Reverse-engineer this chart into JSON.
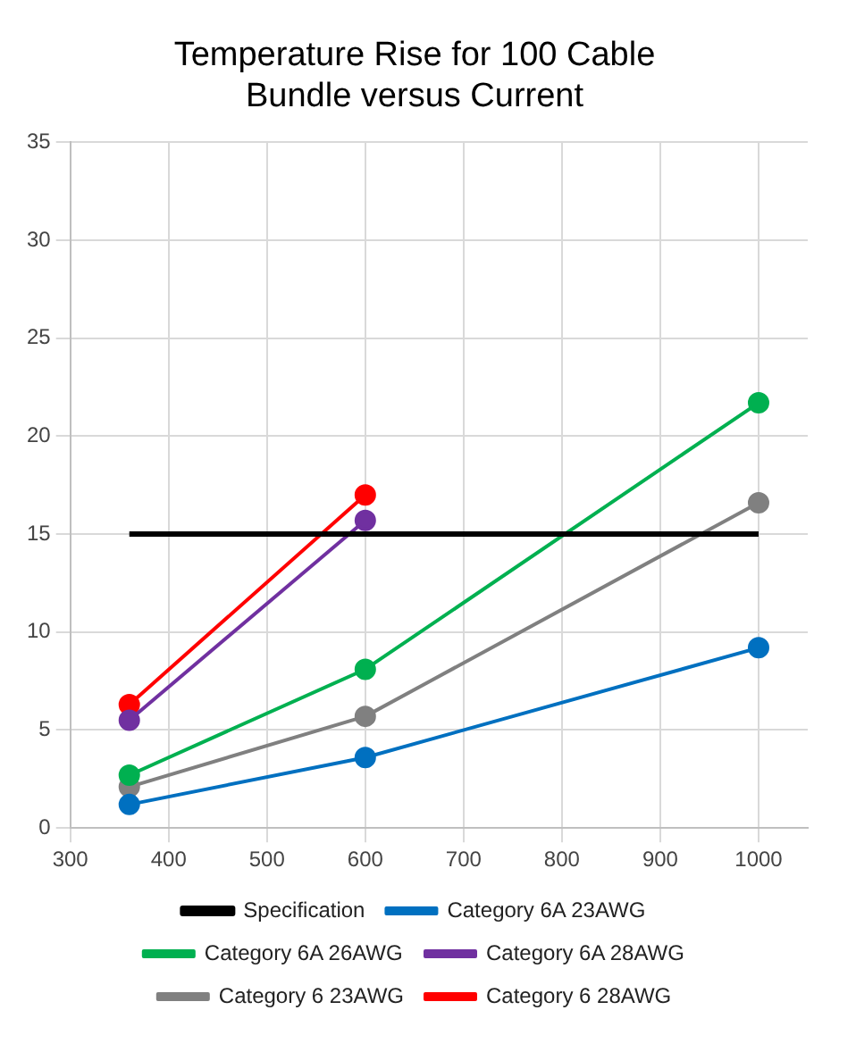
{
  "chart_data": {
    "type": "line",
    "title": "Temperature Rise for 100 Cable Bundle versus Current",
    "xlim": [
      300,
      1050
    ],
    "xticks": [
      300,
      400,
      500,
      600,
      700,
      800,
      900,
      1000
    ],
    "ylim": [
      0,
      35
    ],
    "yticks": [
      0,
      5,
      10,
      15,
      20,
      25,
      30,
      35
    ],
    "grid": true,
    "legend": "bottom",
    "marker": "circle",
    "series": [
      {
        "name": "Specification",
        "color": "#000000",
        "x": [
          360,
          1000
        ],
        "values": [
          15,
          15
        ],
        "marker": "none"
      },
      {
        "name": "Category 6A 23AWG",
        "color": "#0070c0",
        "x": [
          360,
          600,
          1000
        ],
        "values": [
          1.2,
          3.6,
          9.2
        ]
      },
      {
        "name": "Category 6A 26AWG",
        "color": "#00b050",
        "x": [
          360,
          600,
          1000
        ],
        "values": [
          2.7,
          8.1,
          21.7
        ]
      },
      {
        "name": "Category 6A 28AWG",
        "color": "#7030a0",
        "x": [
          360,
          600
        ],
        "values": [
          5.5,
          15.7
        ]
      },
      {
        "name": "Category 6 23AWG",
        "color": "#808080",
        "x": [
          360,
          600,
          1000
        ],
        "values": [
          2.1,
          5.7,
          16.6
        ]
      },
      {
        "name": "Category 6 28AWG",
        "color": "#ff0000",
        "x": [
          360,
          600
        ],
        "values": [
          6.3,
          17.0
        ]
      }
    ]
  }
}
